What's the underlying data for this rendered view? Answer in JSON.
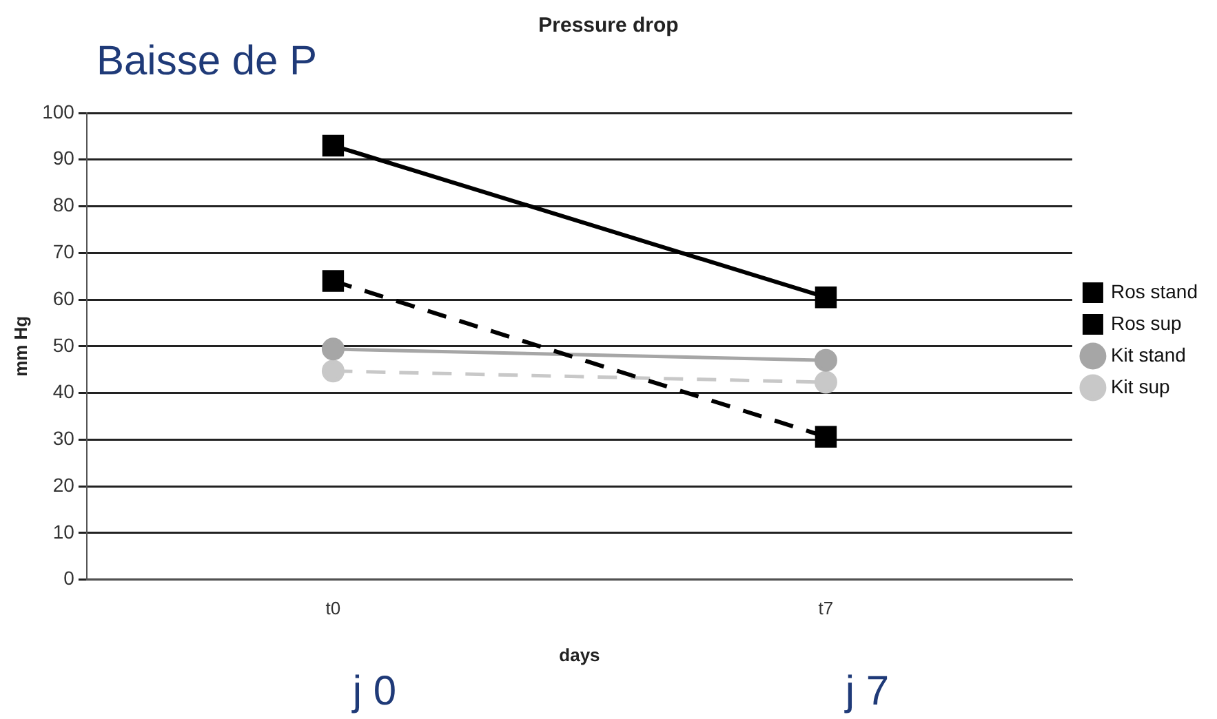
{
  "chart_data": {
    "type": "line",
    "title": "Pressure drop",
    "xlabel": "days",
    "ylabel": "mm Hg",
    "annotations": [
      "Baisse de P",
      "j 0",
      "j 7"
    ],
    "categories": [
      "t0",
      "t7"
    ],
    "series": [
      {
        "name": "Ros stand",
        "color": "#000000",
        "values": [
          93,
          60.5
        ],
        "marker": "square",
        "line_style": "solid"
      },
      {
        "name": "Ros sup",
        "color": "#000000",
        "values": [
          64,
          30.6
        ],
        "marker": "square",
        "line_style": "dashed"
      },
      {
        "name": "Kit stand",
        "color": "#a6a6a6",
        "values": [
          49.4,
          47
        ],
        "marker": "circle",
        "line_style": "solid"
      },
      {
        "name": "Kit sup",
        "color": "#c8c8c8",
        "values": [
          44.7,
          42.3
        ],
        "marker": "circle",
        "line_style": "dashed"
      }
    ],
    "ylim": [
      0,
      100
    ],
    "yticks": [
      0,
      10,
      20,
      30,
      40,
      50,
      60,
      70,
      80,
      90,
      100
    ],
    "grid": "y",
    "legend": "right"
  }
}
